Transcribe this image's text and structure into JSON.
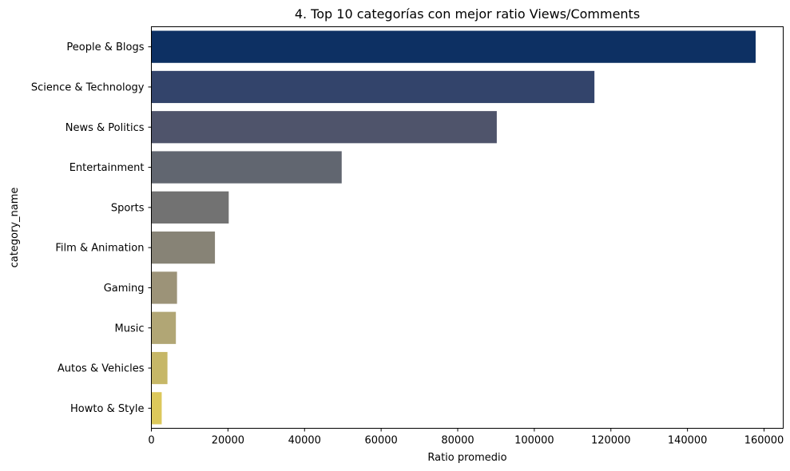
{
  "chart_data": {
    "type": "bar",
    "orientation": "horizontal",
    "title": "4. Top 10 categorías con mejor ratio Views/Comments",
    "xlabel": "Ratio promedio",
    "ylabel": "category_name",
    "categories": [
      "People & Blogs",
      "Science & Technology",
      "News & Politics",
      "Entertainment",
      "Sports",
      "Film & Animation",
      "Gaming",
      "Music",
      "Autos & Vehicles",
      "Howto & Style"
    ],
    "values": [
      157800,
      115700,
      90200,
      49700,
      20200,
      16600,
      6700,
      6400,
      4200,
      2700
    ],
    "xlim": [
      0,
      165000
    ],
    "xticks": [
      0,
      20000,
      40000,
      60000,
      80000,
      100000,
      120000,
      140000,
      160000
    ],
    "colors": [
      "#0d3063",
      "#33446b",
      "#4f546b",
      "#616670",
      "#727272",
      "#878376",
      "#9c9378",
      "#b1a675",
      "#c6b767",
      "#dcc85b"
    ],
    "grid": false,
    "legend": "none"
  }
}
